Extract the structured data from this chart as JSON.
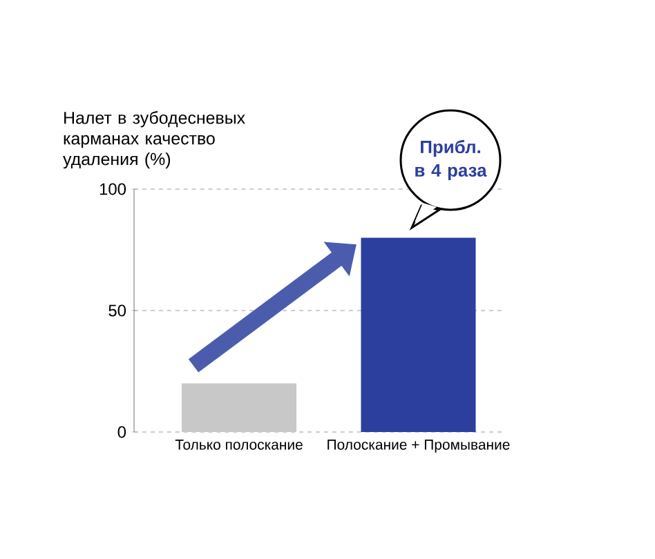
{
  "chart_data": {
    "type": "bar",
    "ylabel": "Налет в зубодесневых карманах качество удаления (%)",
    "categories": [
      "Только полоскание",
      "Полоскание + Промывание"
    ],
    "values": [
      20,
      80
    ],
    "colors": [
      "#c8c8c8",
      "#2c3f9e"
    ],
    "ylim": [
      0,
      100
    ],
    "yticks": [
      0,
      50,
      100
    ],
    "grid": "y",
    "annotations": [
      "Прибл. в 4 раза"
    ]
  }
}
